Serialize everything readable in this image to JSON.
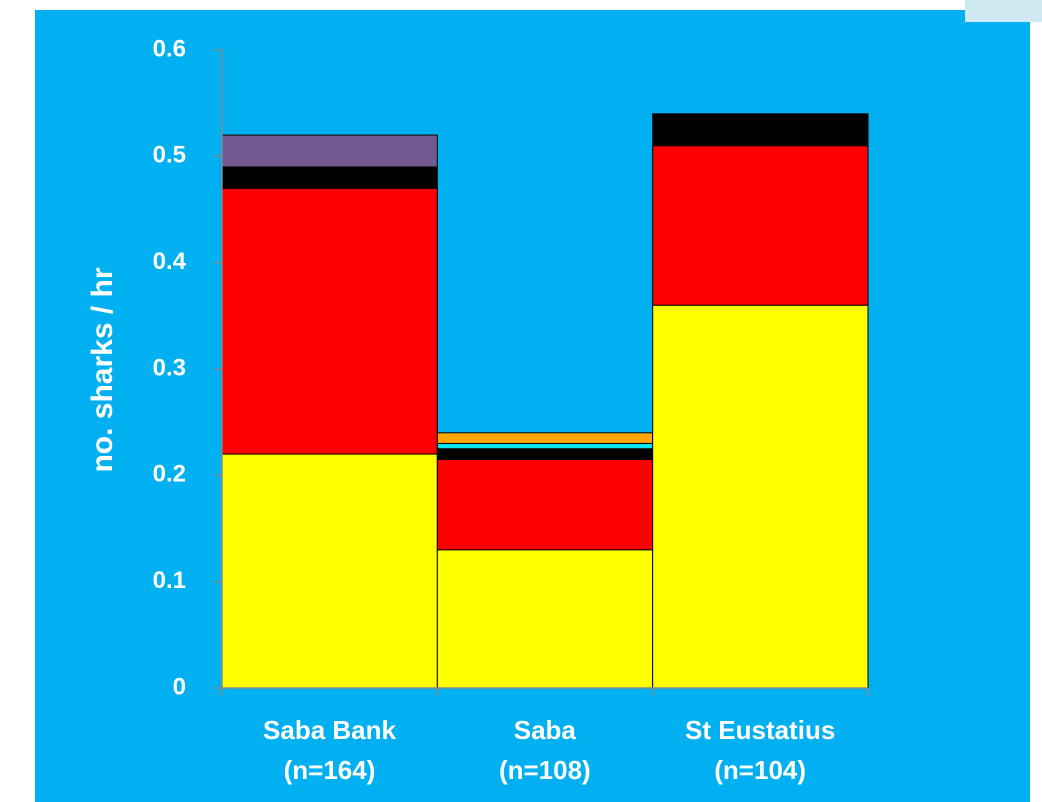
{
  "chart_data": {
    "type": "stacked_bar",
    "y_label": "no. sharks / hr",
    "categories": [
      "Saba Bank\n(n=164)",
      "Saba\n(n=108)",
      "St Eustatius\n(n=104)"
    ],
    "series": [
      {
        "color": "#ffff00",
        "values": [
          0.22,
          0.13,
          0.36
        ]
      },
      {
        "color": "#ff0000",
        "values": [
          0.25,
          0.085,
          0.15
        ]
      },
      {
        "color": "#000000",
        "values": [
          0.02,
          0.01,
          0.03
        ]
      },
      {
        "color": "#00e5ee",
        "values": [
          0,
          0.005,
          0
        ]
      },
      {
        "color": "#ffa500",
        "values": [
          0,
          0.01,
          0
        ]
      },
      {
        "color": "#725a91",
        "values": [
          0.03,
          0,
          0
        ]
      }
    ],
    "ylim": [
      0,
      0.6
    ],
    "yticks": [
      0,
      0.1,
      0.2,
      0.3,
      0.4,
      0.5,
      0.6
    ]
  }
}
